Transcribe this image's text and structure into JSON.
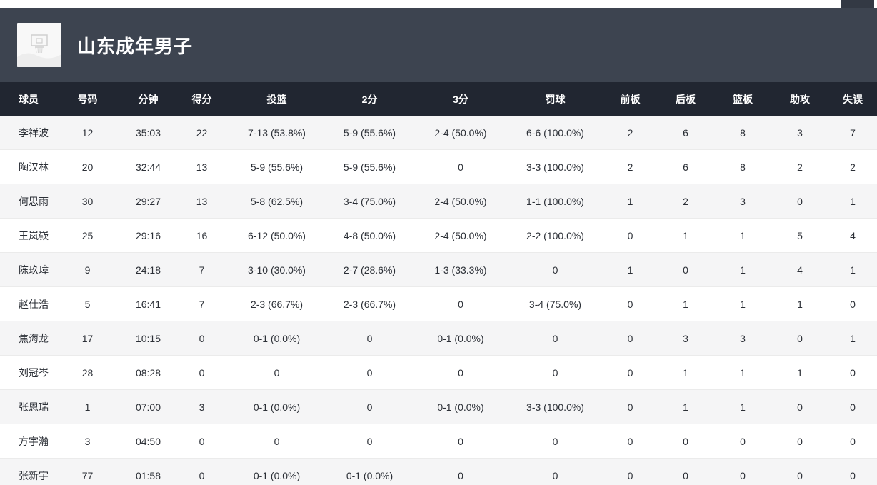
{
  "banner": {
    "team_title": "山东成年男子",
    "logo_icon": "hoop-placeholder-icon"
  },
  "colors": {
    "banner_bg": "#3d4450",
    "header_bg": "#212631",
    "row_alt_bg": "#f5f5f6",
    "row_bg": "#ffffff",
    "cell_text": "#2b2f36"
  },
  "table": {
    "columns": [
      {
        "key": "name",
        "label": "球员"
      },
      {
        "key": "number",
        "label": "号码"
      },
      {
        "key": "minutes",
        "label": "分钟"
      },
      {
        "key": "points",
        "label": "得分"
      },
      {
        "key": "fg",
        "label": "投篮"
      },
      {
        "key": "two_pt",
        "label": "2分"
      },
      {
        "key": "three_pt",
        "label": "3分"
      },
      {
        "key": "ft",
        "label": "罚球"
      },
      {
        "key": "oreb",
        "label": "前板"
      },
      {
        "key": "dreb",
        "label": "后板"
      },
      {
        "key": "reb",
        "label": "篮板"
      },
      {
        "key": "ast",
        "label": "助攻"
      },
      {
        "key": "tov",
        "label": "失误"
      }
    ],
    "players": [
      {
        "name": "李祥波",
        "number": "12",
        "minutes": "35:03",
        "points": "22",
        "fg": "7-13 (53.8%)",
        "two_pt": "5-9 (55.6%)",
        "three_pt": "2-4 (50.0%)",
        "ft": "6-6 (100.0%)",
        "oreb": "2",
        "dreb": "6",
        "reb": "8",
        "ast": "3",
        "tov": "7"
      },
      {
        "name": "陶汉林",
        "number": "20",
        "minutes": "32:44",
        "points": "13",
        "fg": "5-9 (55.6%)",
        "two_pt": "5-9 (55.6%)",
        "three_pt": "0",
        "ft": "3-3 (100.0%)",
        "oreb": "2",
        "dreb": "6",
        "reb": "8",
        "ast": "2",
        "tov": "2"
      },
      {
        "name": "何思雨",
        "number": "30",
        "minutes": "29:27",
        "points": "13",
        "fg": "5-8 (62.5%)",
        "two_pt": "3-4 (75.0%)",
        "three_pt": "2-4 (50.0%)",
        "ft": "1-1 (100.0%)",
        "oreb": "1",
        "dreb": "2",
        "reb": "3",
        "ast": "0",
        "tov": "1"
      },
      {
        "name": "王岚嵚",
        "number": "25",
        "minutes": "29:16",
        "points": "16",
        "fg": "6-12 (50.0%)",
        "two_pt": "4-8 (50.0%)",
        "three_pt": "2-4 (50.0%)",
        "ft": "2-2 (100.0%)",
        "oreb": "0",
        "dreb": "1",
        "reb": "1",
        "ast": "5",
        "tov": "4"
      },
      {
        "name": "陈玖璋",
        "number": "9",
        "minutes": "24:18",
        "points": "7",
        "fg": "3-10 (30.0%)",
        "two_pt": "2-7 (28.6%)",
        "three_pt": "1-3 (33.3%)",
        "ft": "0",
        "oreb": "1",
        "dreb": "0",
        "reb": "1",
        "ast": "4",
        "tov": "1"
      },
      {
        "name": "赵仕浩",
        "number": "5",
        "minutes": "16:41",
        "points": "7",
        "fg": "2-3 (66.7%)",
        "two_pt": "2-3 (66.7%)",
        "three_pt": "0",
        "ft": "3-4 (75.0%)",
        "oreb": "0",
        "dreb": "1",
        "reb": "1",
        "ast": "1",
        "tov": "0"
      },
      {
        "name": "焦海龙",
        "number": "17",
        "minutes": "10:15",
        "points": "0",
        "fg": "0-1 (0.0%)",
        "two_pt": "0",
        "three_pt": "0-1 (0.0%)",
        "ft": "0",
        "oreb": "0",
        "dreb": "3",
        "reb": "3",
        "ast": "0",
        "tov": "1"
      },
      {
        "name": "刘冠岑",
        "number": "28",
        "minutes": "08:28",
        "points": "0",
        "fg": "0",
        "two_pt": "0",
        "three_pt": "0",
        "ft": "0",
        "oreb": "0",
        "dreb": "1",
        "reb": "1",
        "ast": "1",
        "tov": "0"
      },
      {
        "name": "张恩瑞",
        "number": "1",
        "minutes": "07:00",
        "points": "3",
        "fg": "0-1 (0.0%)",
        "two_pt": "0",
        "three_pt": "0-1 (0.0%)",
        "ft": "3-3 (100.0%)",
        "oreb": "0",
        "dreb": "1",
        "reb": "1",
        "ast": "0",
        "tov": "0"
      },
      {
        "name": "方宇瀚",
        "number": "3",
        "minutes": "04:50",
        "points": "0",
        "fg": "0",
        "two_pt": "0",
        "three_pt": "0",
        "ft": "0",
        "oreb": "0",
        "dreb": "0",
        "reb": "0",
        "ast": "0",
        "tov": "0"
      },
      {
        "name": "张新宇",
        "number": "77",
        "minutes": "01:58",
        "points": "0",
        "fg": "0-1 (0.0%)",
        "two_pt": "0-1 (0.0%)",
        "three_pt": "0",
        "ft": "0",
        "oreb": "0",
        "dreb": "0",
        "reb": "0",
        "ast": "0",
        "tov": "0"
      }
    ]
  }
}
